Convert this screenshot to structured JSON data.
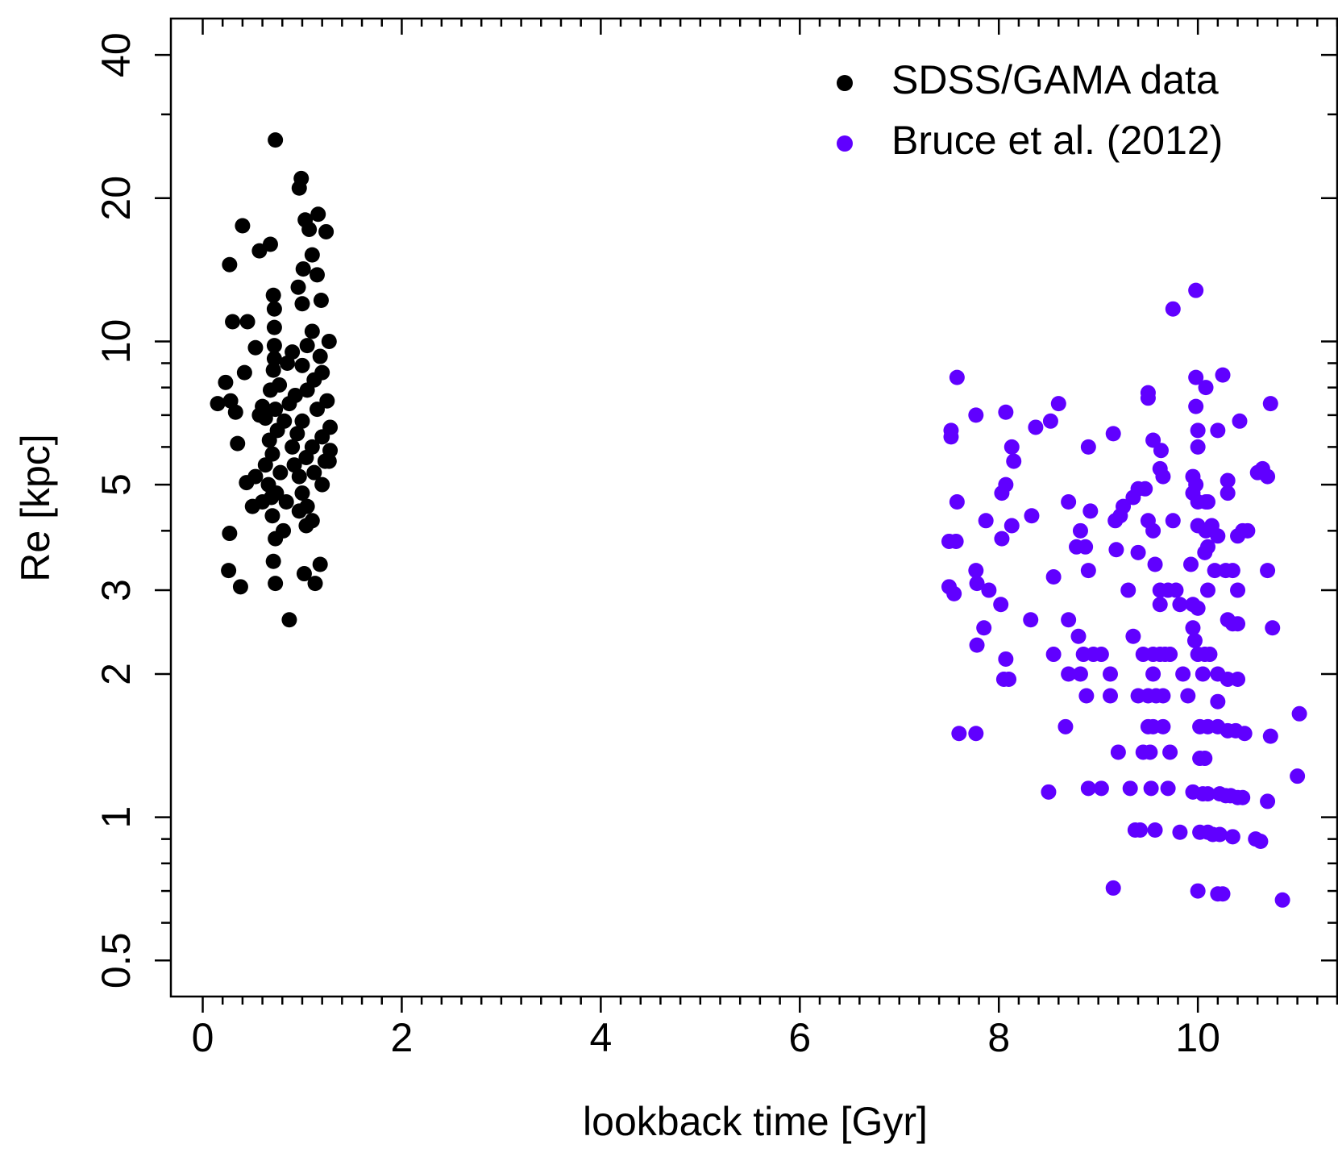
{
  "chart_data": {
    "type": "scatter",
    "x_label": "lookback time [Gyr]",
    "y_label": "Re [kpc]",
    "xlim": [
      -0.32,
      11.4
    ],
    "ylim": [
      0.42,
      47.7
    ],
    "log_y": true,
    "xticks": [
      0,
      2,
      4,
      6,
      8,
      10
    ],
    "xminor_ticks": [
      0.2,
      0.4,
      0.6,
      0.8,
      1,
      1.2,
      1.4,
      1.6,
      1.8,
      2.2,
      2.4,
      2.6,
      2.8,
      3,
      3.2,
      3.4,
      3.6,
      3.8,
      4.2,
      4.4,
      4.6,
      4.8,
      5,
      5.2,
      5.4,
      5.6,
      5.8,
      6.2,
      6.4,
      6.6,
      6.8,
      7,
      7.2,
      7.4,
      7.6,
      7.8,
      8.2,
      8.4,
      8.6,
      8.8,
      9,
      9.2,
      9.4,
      9.6,
      9.8,
      10.2,
      10.4,
      10.6,
      10.8,
      11,
      11.2,
      11.4
    ],
    "yticks": [
      0.5,
      1,
      2,
      3,
      5,
      10,
      20,
      40
    ],
    "yminor_ticks": [
      0.6,
      0.7,
      0.8,
      0.9,
      4,
      6,
      7,
      8,
      9,
      30
    ],
    "legend": "topright",
    "series": [
      {
        "name": "SDSS/GAMA data",
        "color": "#000000",
        "x": [
          0.73,
          0.99,
          0.97,
          0.4,
          1.03,
          1.16,
          1.24,
          1.07,
          0.68,
          0.57,
          0.27,
          1.1,
          1.01,
          1.15,
          0.96,
          0.71,
          1.19,
          1.0,
          0.72,
          0.3,
          0.45,
          0.72,
          1.1,
          1.27,
          0.53,
          0.72,
          0.9,
          1.05,
          0.72,
          1.18,
          0.85,
          0.42,
          0.71,
          1.0,
          1.2,
          0.23,
          0.77,
          1.12,
          0.68,
          0.93,
          1.05,
          1.25,
          0.15,
          0.28,
          0.33,
          0.6,
          0.73,
          0.87,
          1.15,
          0.57,
          0.63,
          0.82,
          1.0,
          1.28,
          0.75,
          0.95,
          1.2,
          0.67,
          0.35,
          0.9,
          1.1,
          1.28,
          0.7,
          1.04,
          1.23,
          0.63,
          0.92,
          1.27,
          0.78,
          1.12,
          0.97,
          0.53,
          0.44,
          0.66,
          1.2,
          0.74,
          1.0,
          0.5,
          0.6,
          0.69,
          0.84,
          1.05,
          0.7,
          0.97,
          1.1,
          0.81,
          0.27,
          0.73,
          1.04,
          0.26,
          0.71,
          1.18,
          1.02,
          0.38,
          0.73,
          1.13,
          0.87
        ],
        "values": [
          26.5,
          22,
          21,
          17.5,
          18,
          18.5,
          17,
          17.2,
          16,
          15.5,
          14.5,
          15.2,
          14.2,
          13.8,
          13,
          12.5,
          12.2,
          12,
          11.7,
          11,
          11,
          10.7,
          10.5,
          10,
          9.7,
          9.8,
          9.5,
          9.8,
          9.2,
          9.3,
          9.0,
          8.6,
          8.7,
          8.9,
          8.6,
          8.2,
          8.1,
          8.3,
          7.9,
          7.7,
          7.9,
          7.5,
          7.4,
          7.5,
          7.1,
          7.3,
          7.2,
          7.4,
          7.2,
          7.0,
          6.9,
          6.8,
          6.8,
          6.6,
          6.5,
          6.4,
          6.3,
          6.2,
          6.1,
          6.0,
          6.0,
          5.9,
          5.8,
          5.7,
          5.6,
          5.5,
          5.5,
          5.6,
          5.3,
          5.3,
          5.2,
          5.2,
          5.05,
          5.0,
          5.0,
          4.8,
          4.8,
          4.5,
          4.6,
          4.7,
          4.6,
          4.5,
          4.3,
          4.4,
          4.2,
          4.0,
          3.95,
          3.85,
          4.1,
          3.3,
          3.45,
          3.4,
          3.25,
          3.05,
          3.1,
          3.1,
          2.6
        ]
      },
      {
        "name": "Bruce et al. (2012)",
        "color": "#6000ff",
        "x": [
          9.98,
          9.75,
          7.58,
          7.77,
          7.52,
          7.52,
          8.07,
          8.37,
          8.52,
          8.6,
          8.9,
          9.15,
          9.5,
          9.5,
          9.55,
          9.63,
          9.62,
          9.65,
          9.98,
          10.08,
          10.25,
          9.98,
          10.0,
          10.2,
          10.42,
          10.73,
          10.0,
          10.6,
          10.65,
          10.7,
          10.3,
          9.95,
          9.98,
          9.95,
          10.0,
          10.08,
          10.1,
          10.3,
          7.58,
          8.03,
          8.07,
          8.15,
          8.13,
          7.87,
          8.03,
          8.13,
          8.33,
          8.7,
          8.82,
          8.92,
          9.17,
          9.22,
          9.25,
          9.35,
          9.4,
          9.47,
          9.5,
          9.55,
          9.75,
          10.0,
          10.08,
          10.14,
          10.1,
          10.2,
          10.4,
          10.45,
          10.5,
          7.5,
          7.57,
          7.77,
          7.78,
          7.5,
          7.55,
          7.9,
          8.02,
          8.32,
          8.55,
          8.78,
          8.87,
          8.9,
          9.18,
          9.4,
          9.3,
          9.57,
          9.62,
          9.7,
          9.78,
          9.62,
          9.82,
          9.95,
          10.0,
          9.93,
          10.07,
          10.17,
          10.28,
          10.35,
          10.1,
          10.4,
          10.7,
          10.75,
          10.3,
          10.35,
          10.4,
          9.95,
          9.97,
          9.35,
          7.85,
          7.78,
          8.07,
          8.05,
          8.1,
          8.55,
          8.7,
          8.8,
          8.85,
          8.95,
          9.03,
          8.7,
          8.82,
          9.12,
          9.45,
          9.55,
          9.62,
          9.67,
          9.72,
          9.55,
          9.85,
          10.0,
          10.07,
          10.12,
          10.05,
          10.2,
          10.3,
          10.4,
          8.88,
          9.12,
          9.4,
          9.5,
          9.58,
          9.65,
          9.9,
          10.2,
          7.6,
          7.77,
          8.67,
          9.5,
          9.55,
          9.65,
          10.02,
          10.1,
          10.2,
          10.3,
          10.38,
          10.47,
          10.73,
          11.02,
          9.2,
          9.45,
          9.52,
          9.72,
          10.02,
          10.07,
          11.0,
          8.5,
          8.9,
          9.03,
          9.32,
          9.53,
          9.7,
          9.95,
          10.05,
          10.1,
          10.22,
          10.28,
          10.33,
          10.4,
          10.45,
          10.7,
          9.37,
          9.42,
          9.57,
          9.82,
          10.02,
          10.1,
          10.15,
          10.22,
          10.35,
          10.58,
          10.63,
          9.15,
          10.0,
          10.2,
          10.25,
          10.85
        ],
        "values": [
          12.8,
          11.7,
          8.4,
          7.0,
          6.5,
          6.3,
          7.1,
          6.6,
          6.8,
          7.4,
          6.0,
          6.4,
          7.8,
          7.6,
          6.2,
          5.9,
          5.4,
          5.2,
          8.4,
          8.0,
          8.5,
          7.3,
          6.5,
          6.5,
          6.8,
          7.4,
          6.0,
          5.3,
          5.4,
          5.2,
          5.1,
          5.2,
          5.0,
          4.8,
          4.6,
          4.6,
          4.6,
          4.8,
          4.6,
          4.8,
          5.0,
          5.6,
          6.0,
          4.2,
          3.85,
          4.1,
          4.3,
          4.6,
          4.0,
          4.4,
          4.2,
          4.3,
          4.5,
          4.7,
          4.9,
          4.9,
          4.2,
          4.0,
          4.2,
          4.1,
          4.0,
          4.1,
          3.7,
          3.9,
          3.9,
          4.0,
          4.0,
          3.8,
          3.8,
          3.3,
          3.1,
          3.05,
          2.95,
          3.0,
          2.8,
          2.6,
          3.2,
          3.7,
          3.7,
          3.3,
          3.65,
          3.6,
          3.0,
          3.4,
          3.0,
          3.0,
          3.0,
          2.8,
          2.8,
          2.8,
          2.75,
          3.4,
          3.6,
          3.3,
          3.3,
          3.3,
          3.0,
          3.0,
          3.3,
          2.5,
          2.6,
          2.55,
          2.55,
          2.5,
          2.35,
          2.4,
          2.5,
          2.3,
          2.15,
          1.95,
          1.95,
          2.2,
          2.6,
          2.4,
          2.2,
          2.2,
          2.2,
          2.0,
          2.0,
          2.0,
          2.2,
          2.2,
          2.2,
          2.2,
          2.2,
          2.0,
          2.0,
          2.2,
          2.2,
          2.2,
          2.0,
          2.0,
          1.95,
          1.95,
          1.8,
          1.8,
          1.8,
          1.8,
          1.8,
          1.8,
          1.8,
          1.75,
          1.5,
          1.5,
          1.55,
          1.55,
          1.55,
          1.55,
          1.55,
          1.55,
          1.55,
          1.52,
          1.52,
          1.5,
          1.48,
          1.65,
          1.37,
          1.37,
          1.37,
          1.37,
          1.33,
          1.33,
          1.22,
          1.13,
          1.15,
          1.15,
          1.15,
          1.15,
          1.15,
          1.13,
          1.12,
          1.12,
          1.12,
          1.11,
          1.11,
          1.1,
          1.1,
          1.08,
          0.94,
          0.94,
          0.94,
          0.93,
          0.93,
          0.93,
          0.92,
          0.92,
          0.91,
          0.9,
          0.89,
          0.71,
          0.7,
          0.69,
          0.69,
          0.67
        ]
      }
    ]
  }
}
